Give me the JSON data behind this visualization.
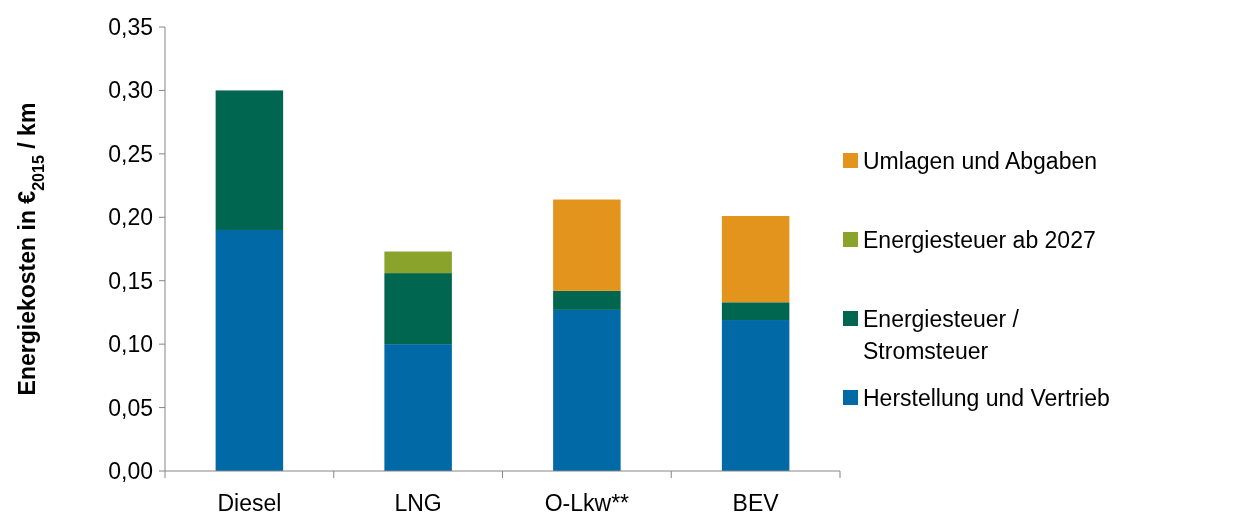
{
  "chart_data": {
    "type": "bar",
    "stacked": true,
    "ylabel": "Energiekosten  in €$_{2015}$ / km",
    "categories": [
      "Diesel",
      "LNG",
      "O-Lkw**",
      "BEV"
    ],
    "series": [
      {
        "name": "Herstellung und Vertrieb",
        "color": "#0069a6",
        "values": [
          0.19,
          0.1,
          0.127,
          0.119
        ]
      },
      {
        "name": "Energiesteuer / Stromsteuer",
        "color": "#00664f",
        "values": [
          0.11,
          0.056,
          0.015,
          0.014
        ]
      },
      {
        "name": "Energiesteuer ab 2027",
        "color": "#8aa32b",
        "values": [
          null,
          0.017,
          null,
          null
        ]
      },
      {
        "name": "Umlagen und Abgaben",
        "color": "#e3941c",
        "values": [
          null,
          null,
          0.072,
          0.068
        ]
      }
    ],
    "ylim": [
      0,
      0.35
    ],
    "yticks": [
      {
        "value": 0,
        "label": "0,00"
      },
      {
        "value": 0.05,
        "label": "0,05"
      },
      {
        "value": 0.1,
        "label": "0,10"
      },
      {
        "value": 0.15,
        "label": "0,15"
      },
      {
        "value": 0.2,
        "label": "0,20"
      },
      {
        "value": 0.25,
        "label": "0,25"
      },
      {
        "value": 0.3,
        "label": "0,30"
      },
      {
        "value": 0.35,
        "label": "0,35"
      }
    ],
    "grid": false,
    "legend": "right"
  }
}
